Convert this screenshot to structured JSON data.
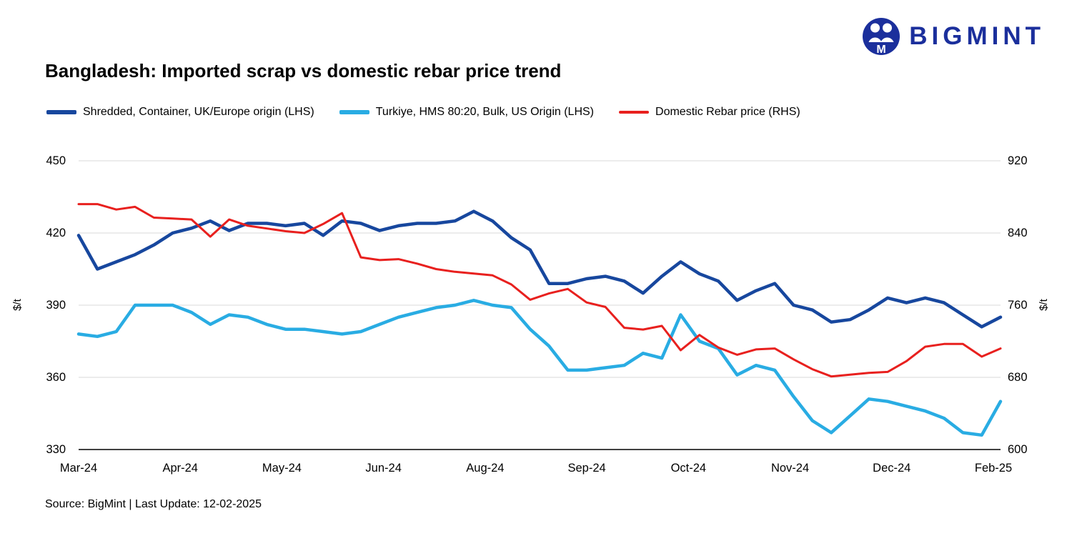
{
  "logo": {
    "text": "BIGMINT",
    "color": "#1b2f9c"
  },
  "title": "Bangladesh: Imported scrap vs domestic rebar price trend",
  "legend": [
    {
      "label": "Shredded, Container, UK/Europe origin (LHS)",
      "color": "#17479e"
    },
    {
      "label": "Turkiye, HMS 80:20, Bulk, US Origin (LHS)",
      "color": "#29ace3"
    },
    {
      "label": "Domestic Rebar price (RHS)",
      "color": "#e8201e"
    }
  ],
  "source": "Source: BigMint | Last Update: 12-02-2025",
  "chart_data": {
    "type": "line",
    "title": "Bangladesh: Imported scrap vs domestic rebar price trend",
    "grid": "horizontal",
    "legend_position": "top",
    "left_axis": {
      "label": "$/t",
      "range": [
        330,
        450
      ],
      "ticks": [
        330,
        360,
        390,
        420,
        450
      ]
    },
    "right_axis": {
      "label": "$/t",
      "range": [
        600,
        920
      ],
      "ticks": [
        600,
        680,
        760,
        840,
        920
      ]
    },
    "x_labels": [
      "Mar-24",
      "Apr-24",
      "May-24",
      "Jun-24",
      "Aug-24",
      "Sep-24",
      "Oct-24",
      "Nov-24",
      "Dec-24",
      "Feb-25"
    ],
    "series": [
      {
        "name": "Shredded, Container, UK/Europe origin (LHS)",
        "axis": "left",
        "color": "#17479e",
        "width": 4.5,
        "values": [
          419,
          405,
          408,
          411,
          415,
          420,
          422,
          425,
          421,
          424,
          424,
          423,
          424,
          419,
          425,
          424,
          421,
          423,
          424,
          424,
          425,
          429,
          425,
          418,
          413,
          399,
          399,
          401,
          402,
          400,
          395,
          402,
          408,
          403,
          400,
          392,
          396,
          399,
          390,
          388,
          383,
          384,
          388,
          393,
          391,
          393,
          391,
          386,
          381,
          385
        ]
      },
      {
        "name": "Turkiye, HMS 80:20, Bulk, US Origin (LHS)",
        "axis": "left",
        "color": "#29ace3",
        "width": 4.5,
        "values": [
          378,
          377,
          379,
          390,
          390,
          390,
          387,
          382,
          386,
          385,
          382,
          380,
          380,
          379,
          378,
          379,
          382,
          385,
          387,
          389,
          390,
          392,
          390,
          389,
          380,
          373,
          363,
          363,
          364,
          365,
          370,
          368,
          386,
          375,
          372,
          361,
          365,
          363,
          352,
          342,
          337,
          344,
          351,
          350,
          348,
          346,
          343,
          337,
          336,
          350
        ]
      },
      {
        "name": "Domestic Rebar price (RHS)",
        "axis": "right",
        "color": "#e8201e",
        "width": 3,
        "values": [
          872,
          872,
          866,
          869,
          857,
          856,
          855,
          836,
          855,
          848,
          845,
          842,
          840,
          850,
          862,
          813,
          810,
          811,
          806,
          800,
          797,
          795,
          793,
          783,
          766,
          773,
          778,
          763,
          758,
          735,
          733,
          737,
          710,
          727,
          713,
          705,
          711,
          712,
          700,
          689,
          681,
          683,
          685,
          686,
          698,
          714,
          717,
          717,
          703,
          712
        ]
      }
    ]
  }
}
